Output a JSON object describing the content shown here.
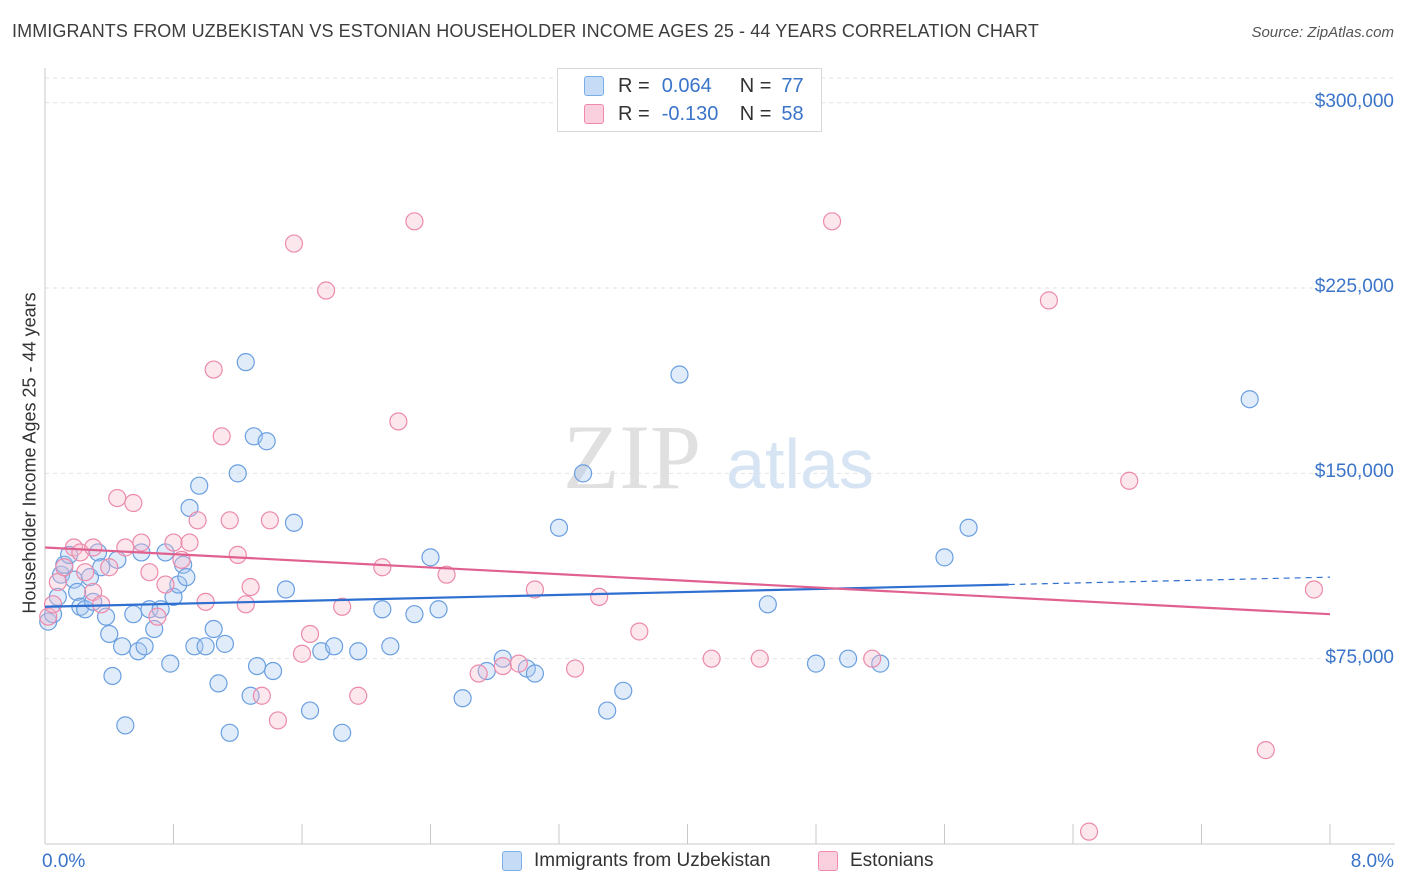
{
  "title": "IMMIGRANTS FROM UZBEKISTAN VS ESTONIAN HOUSEHOLDER INCOME AGES 25 - 44 YEARS CORRELATION CHART",
  "source": "Source: ZipAtlas.com",
  "watermark": {
    "zip": "ZIP",
    "atlas": "atlas"
  },
  "legend": {
    "blue": {
      "r_label": "R =",
      "r_value": "0.064",
      "n_label": "N =",
      "n_value": "77"
    },
    "pink": {
      "r_label": "R =",
      "r_value": "-0.130",
      "n_label": "N =",
      "n_value": "58"
    }
  },
  "colors": {
    "blue": "#7aaee8",
    "blue_line": "#2f6fd0",
    "pink": "#f08aab",
    "pink_line": "#e06090",
    "accent_text": "#3a74c9"
  },
  "chart_data": {
    "type": "scatter",
    "xlabel": "",
    "ylabel": "Householder Income Ages 25 - 44 years",
    "xlim": [
      0,
      8
    ],
    "ylim": [
      0,
      310000
    ],
    "x_tick_labels": [
      "0.0%",
      "8.0%"
    ],
    "y_ticks": [
      75000,
      150000,
      225000,
      300000
    ],
    "y_tick_labels": [
      "$75,000",
      "$150,000",
      "$225,000",
      "$300,000"
    ],
    "grid": true,
    "series": [
      {
        "name": "Immigrants from Uzbekistan",
        "color": "#7aaee8",
        "trend": {
          "x": [
            0,
            6
          ],
          "y": [
            96000,
            105000
          ],
          "dashed_to": [
            8,
            108000
          ]
        },
        "points": [
          [
            0.02,
            90000
          ],
          [
            0.05,
            93000
          ],
          [
            0.08,
            100000
          ],
          [
            0.1,
            109000
          ],
          [
            0.12,
            113000
          ],
          [
            0.15,
            117000
          ],
          [
            0.18,
            107000
          ],
          [
            0.2,
            102000
          ],
          [
            0.22,
            96000
          ],
          [
            0.25,
            95000
          ],
          [
            0.28,
            108000
          ],
          [
            0.3,
            98000
          ],
          [
            0.33,
            118000
          ],
          [
            0.35,
            112000
          ],
          [
            0.38,
            92000
          ],
          [
            0.4,
            85000
          ],
          [
            0.42,
            68000
          ],
          [
            0.45,
            115000
          ],
          [
            0.48,
            80000
          ],
          [
            0.5,
            48000
          ],
          [
            0.55,
            93000
          ],
          [
            0.58,
            78000
          ],
          [
            0.6,
            118000
          ],
          [
            0.62,
            80000
          ],
          [
            0.65,
            95000
          ],
          [
            0.68,
            87000
          ],
          [
            0.72,
            95000
          ],
          [
            0.75,
            118000
          ],
          [
            0.78,
            73000
          ],
          [
            0.8,
            100000
          ],
          [
            0.83,
            105000
          ],
          [
            0.86,
            113000
          ],
          [
            0.88,
            108000
          ],
          [
            0.9,
            136000
          ],
          [
            0.93,
            80000
          ],
          [
            0.96,
            145000
          ],
          [
            1.0,
            80000
          ],
          [
            1.05,
            87000
          ],
          [
            1.08,
            65000
          ],
          [
            1.12,
            81000
          ],
          [
            1.15,
            45000
          ],
          [
            1.2,
            150000
          ],
          [
            1.25,
            195000
          ],
          [
            1.28,
            60000
          ],
          [
            1.3,
            165000
          ],
          [
            1.32,
            72000
          ],
          [
            1.38,
            163000
          ],
          [
            1.42,
            70000
          ],
          [
            1.5,
            103000
          ],
          [
            1.55,
            130000
          ],
          [
            1.65,
            54000
          ],
          [
            1.72,
            78000
          ],
          [
            1.8,
            80000
          ],
          [
            1.85,
            45000
          ],
          [
            1.95,
            78000
          ],
          [
            2.1,
            95000
          ],
          [
            2.15,
            80000
          ],
          [
            2.3,
            93000
          ],
          [
            2.4,
            116000
          ],
          [
            2.45,
            95000
          ],
          [
            2.6,
            59000
          ],
          [
            2.75,
            70000
          ],
          [
            2.85,
            75000
          ],
          [
            3.0,
            71000
          ],
          [
            3.05,
            69000
          ],
          [
            3.2,
            128000
          ],
          [
            3.35,
            150000
          ],
          [
            3.5,
            54000
          ],
          [
            3.6,
            62000
          ],
          [
            3.95,
            190000
          ],
          [
            4.5,
            97000
          ],
          [
            4.8,
            73000
          ],
          [
            5.0,
            75000
          ],
          [
            5.2,
            73000
          ],
          [
            5.6,
            116000
          ],
          [
            5.75,
            128000
          ],
          [
            7.5,
            180000
          ]
        ]
      },
      {
        "name": "Estonians",
        "color": "#f08aab",
        "trend": {
          "x": [
            0,
            8
          ],
          "y": [
            120000,
            93000
          ]
        },
        "points": [
          [
            0.02,
            92000
          ],
          [
            0.05,
            97000
          ],
          [
            0.08,
            106000
          ],
          [
            0.12,
            112000
          ],
          [
            0.18,
            120000
          ],
          [
            0.22,
            118000
          ],
          [
            0.25,
            110000
          ],
          [
            0.3,
            102000
          ],
          [
            0.35,
            97000
          ],
          [
            0.4,
            112000
          ],
          [
            0.45,
            140000
          ],
          [
            0.5,
            120000
          ],
          [
            0.55,
            138000
          ],
          [
            0.6,
            122000
          ],
          [
            0.65,
            110000
          ],
          [
            0.7,
            92000
          ],
          [
            0.75,
            105000
          ],
          [
            0.8,
            122000
          ],
          [
            0.85,
            115000
          ],
          [
            0.9,
            122000
          ],
          [
            0.95,
            131000
          ],
          [
            1.0,
            98000
          ],
          [
            1.05,
            192000
          ],
          [
            1.1,
            165000
          ],
          [
            1.15,
            131000
          ],
          [
            1.2,
            117000
          ],
          [
            1.25,
            97000
          ],
          [
            1.28,
            104000
          ],
          [
            1.35,
            60000
          ],
          [
            1.4,
            131000
          ],
          [
            1.45,
            50000
          ],
          [
            1.55,
            243000
          ],
          [
            1.6,
            77000
          ],
          [
            1.65,
            85000
          ],
          [
            1.75,
            224000
          ],
          [
            1.85,
            96000
          ],
          [
            1.95,
            60000
          ],
          [
            2.1,
            112000
          ],
          [
            2.2,
            171000
          ],
          [
            2.3,
            252000
          ],
          [
            2.5,
            109000
          ],
          [
            2.7,
            69000
          ],
          [
            2.85,
            72000
          ],
          [
            2.95,
            73000
          ],
          [
            3.05,
            103000
          ],
          [
            3.3,
            71000
          ],
          [
            3.45,
            100000
          ],
          [
            3.7,
            86000
          ],
          [
            4.15,
            75000
          ],
          [
            4.45,
            75000
          ],
          [
            4.9,
            252000
          ],
          [
            5.15,
            75000
          ],
          [
            6.25,
            220000
          ],
          [
            6.75,
            147000
          ],
          [
            7.9,
            103000
          ],
          [
            7.6,
            38000
          ],
          [
            6.5,
            5000
          ],
          [
            0.3,
            120000
          ]
        ]
      }
    ]
  }
}
